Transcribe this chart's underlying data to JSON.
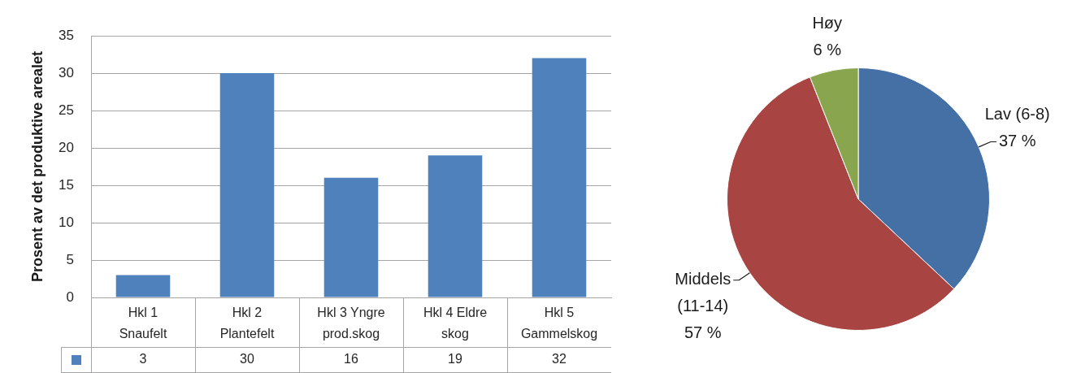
{
  "chart_data": [
    {
      "type": "bar",
      "ylabel": "Prosent av det produktive arealet",
      "categories": [
        "Hkl 1 Snaufelt",
        "Hkl 2 Plantefelt",
        "Hkl 3 Yngre prod.skog",
        "Hkl 4 Eldre skog",
        "Hkl 5 Gammelskog"
      ],
      "values": [
        3,
        30,
        16,
        19,
        32
      ],
      "color": "#4f81bd",
      "ylim": [
        0,
        35
      ],
      "yticks": [
        0,
        5,
        10,
        15,
        20,
        25,
        30,
        35
      ],
      "grid": "y",
      "data_labels": true
    },
    {
      "type": "pie",
      "categories": [
        "Lav (6-8)",
        "Middels (11-14)",
        "Høy"
      ],
      "values": [
        37,
        57,
        6
      ],
      "colors": [
        "#4470a5",
        "#a84543",
        "#89a54e"
      ],
      "value_labels": [
        "37 %",
        "57 %",
        "6 %"
      ]
    }
  ]
}
